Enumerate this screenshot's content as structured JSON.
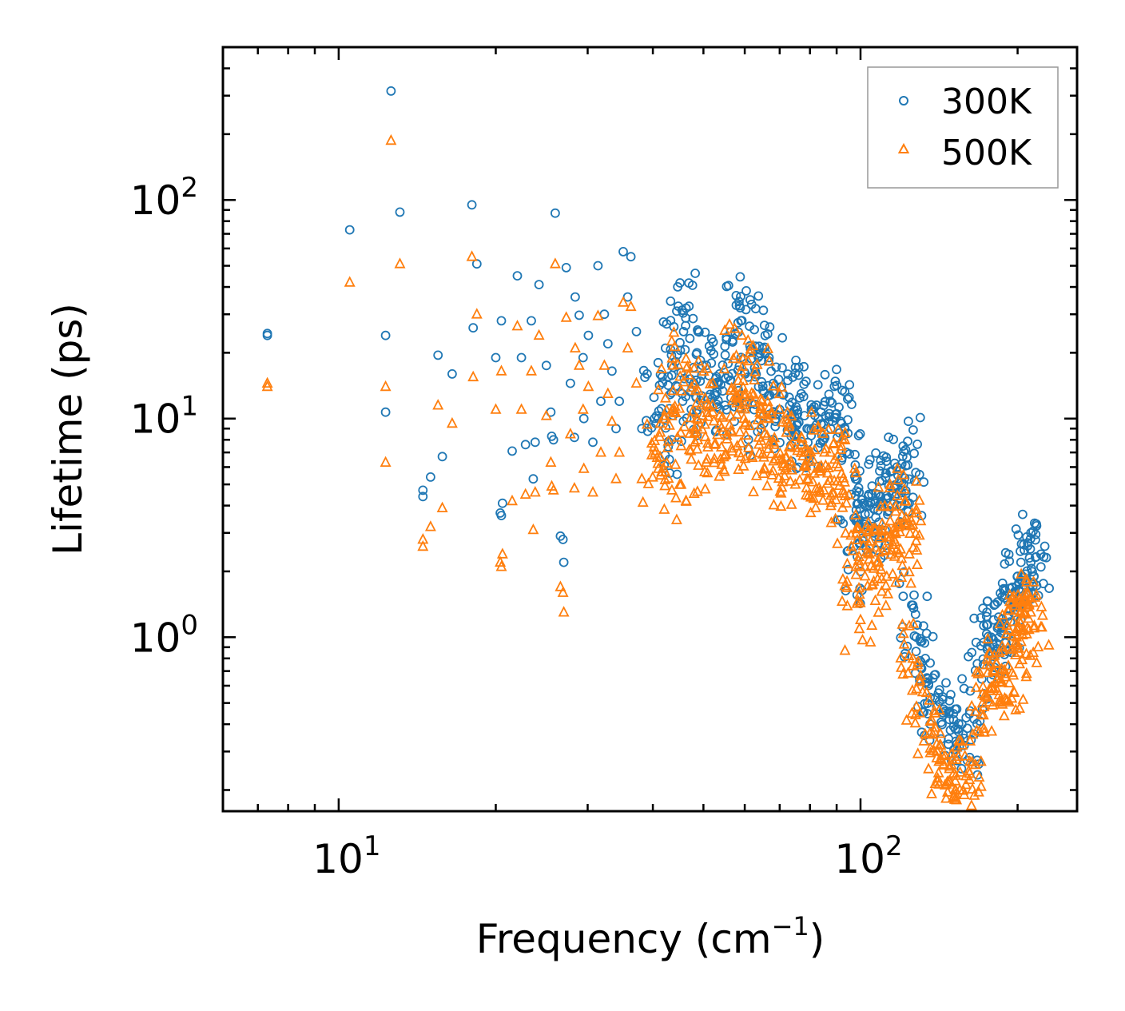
{
  "chart_data": {
    "type": "scatter",
    "title": "",
    "xlabel": "Frequency (cm",
    "xlabel_sup": "−1",
    "xlabel_end": ")",
    "ylabel": "Lifetime (ps)",
    "xscale": "log",
    "yscale": "log",
    "xlim": [
      6.0,
      260.0
    ],
    "ylim": [
      0.16,
      500.0
    ],
    "legend_position": "top-right",
    "x_ticks": [
      {
        "base": "10",
        "exp": "1",
        "value": 10
      },
      {
        "base": "10",
        "exp": "2",
        "value": 100
      }
    ],
    "y_ticks": [
      {
        "base": "10",
        "exp": "0",
        "value": 1
      },
      {
        "base": "10",
        "exp": "1",
        "value": 10
      },
      {
        "base": "10",
        "exp": "2",
        "value": 100
      }
    ],
    "series": [
      {
        "name": "300K",
        "marker": "circle",
        "color": "#1f77b4",
        "x": [
          7.3,
          7.3,
          10.5,
          12.3,
          12.3,
          12.6,
          13.1,
          14.5,
          14.5,
          15.0,
          15.5,
          15.8,
          16.5,
          18.0,
          18.1,
          18.4,
          20.0,
          20.4,
          20.5,
          20.5,
          20.6,
          21.5,
          22.0,
          22.4,
          22.8,
          23.4,
          23.6,
          23.8,
          24.2,
          25.0,
          25.5,
          25.6,
          25.8,
          26.0,
          26.6,
          26.9,
          27.0,
          27.3,
          27.8,
          28.3,
          28.4,
          28.9,
          29.4,
          29.5,
          30.1,
          30.7,
          31.4,
          31.8,
          32.3,
          32.8,
          33.4,
          34.0,
          34.5,
          35.1,
          35.8,
          36.3,
          37.2,
          38.1,
          39.0,
          40.2,
          41.0,
          42.3,
          43.5,
          44.6,
          45.8,
          46.3,
          47.4,
          48.6,
          49.8,
          51.0,
          52.5,
          53.7,
          55.0,
          56.4,
          57.8,
          59.0,
          60.1,
          61.4,
          62.6,
          63.8,
          65.2,
          66.8,
          68.3,
          70.0,
          71.5,
          73.0,
          75.0,
          77.0,
          79.0,
          81.0,
          83.0,
          85.0,
          87.5,
          90.0,
          92.0,
          94.0,
          96.0,
          98.0,
          100.0,
          102.0,
          104.0,
          106.0,
          108.0,
          110.0,
          112.0,
          114.0,
          116.0,
          118.0,
          120.0,
          122.0,
          124.0,
          126.0,
          128.0,
          130.0,
          133.0,
          136.0,
          140.0,
          144.0,
          148.0,
          152.0,
          155.0,
          158.0,
          162.0,
          172.0,
          175.0,
          178.0,
          180.0,
          183.0,
          186.0,
          189.0,
          192.0,
          195.0,
          198.0,
          200.0,
          203.0,
          206.0,
          209.0,
          212.0,
          215.0
        ],
        "y": [
          24.5,
          24.0,
          73.0,
          10.7,
          24.0,
          315.0,
          88.0,
          4.7,
          4.4,
          5.4,
          19.5,
          6.7,
          16.0,
          95.0,
          26.0,
          51.0,
          19.0,
          3.7,
          3.6,
          28.0,
          4.1,
          7.1,
          45.0,
          19.0,
          7.6,
          28.0,
          5.3,
          7.8,
          41.0,
          17.5,
          10.7,
          8.3,
          8.0,
          87.0,
          2.9,
          2.8,
          2.2,
          49.0,
          14.5,
          8.2,
          36.0,
          29.7,
          19.0,
          10.0,
          24.0,
          7.8,
          50.0,
          12.0,
          30.0,
          22.0,
          16.5,
          9.0,
          12.0,
          58.0,
          36.0,
          55.0,
          25.0,
          9.0,
          16.0,
          12.5,
          10.0,
          21.0,
          8.0,
          14.0,
          25.0,
          32.0,
          11.0,
          20.0,
          17.5,
          12.5,
          13.0,
          16.0,
          11.5,
          15.0,
          33.0,
          28.0,
          16.0,
          21.5,
          25.5,
          14.0,
          9.5,
          19.0,
          13.0,
          11.0,
          10.5,
          12.5,
          8.5,
          13.0,
          9.0,
          11.0,
          10.0,
          8.0,
          12.0,
          10.5,
          9.5,
          7.0,
          4.5,
          3.5,
          2.0,
          3.2,
          4.0,
          3.0,
          3.8,
          5.2,
          4.3,
          5.7,
          4.8,
          5.5,
          6.2,
          7.2,
          4.1,
          1.4,
          1.0,
          0.78,
          0.62,
          0.53,
          0.48,
          0.44,
          0.42,
          0.38,
          0.34,
          0.32,
          0.46,
          0.75,
          0.9,
          1.0,
          1.2,
          1.1,
          1.05,
          1.15,
          1.25,
          1.5,
          1.6,
          1.9,
          2.2,
          2.5,
          2.7,
          2.2,
          1.9
        ]
      },
      {
        "name": "500K",
        "marker": "triangle",
        "color": "#ff7f0e",
        "x": [
          7.3,
          7.3,
          10.5,
          12.3,
          12.3,
          12.6,
          13.1,
          14.5,
          14.5,
          15.0,
          15.5,
          15.8,
          16.5,
          18.0,
          18.1,
          18.4,
          20.0,
          20.4,
          20.5,
          20.5,
          20.6,
          21.5,
          22.0,
          22.4,
          22.8,
          23.4,
          23.6,
          23.8,
          24.2,
          25.0,
          25.5,
          25.6,
          25.8,
          26.0,
          26.6,
          26.9,
          27.0,
          27.3,
          27.8,
          28.3,
          28.4,
          28.9,
          29.4,
          29.5,
          30.1,
          30.7,
          31.4,
          31.8,
          32.3,
          32.8,
          33.4,
          34.0,
          34.5,
          35.1,
          35.8,
          36.3,
          37.2,
          38.1,
          39.0,
          40.2,
          41.0,
          42.3,
          43.5,
          44.6,
          45.8,
          46.3,
          47.4,
          48.6,
          49.8,
          51.0,
          52.5,
          53.7,
          55.0,
          56.4,
          57.8,
          59.0,
          60.1,
          61.4,
          62.6,
          63.8,
          65.2,
          66.8,
          68.3,
          70.0,
          71.5,
          73.0,
          75.0,
          77.0,
          79.0,
          81.0,
          83.0,
          85.0,
          87.5,
          90.0,
          92.0,
          94.0,
          96.0,
          98.0,
          100.0,
          102.0,
          104.0,
          106.0,
          108.0,
          110.0,
          112.0,
          114.0,
          116.0,
          118.0,
          120.0,
          122.0,
          124.0,
          126.0,
          128.0,
          130.0,
          133.0,
          136.0,
          140.0,
          144.0,
          148.0,
          152.0,
          155.0,
          158.0,
          162.0,
          172.0,
          175.0,
          178.0,
          180.0,
          183.0,
          186.0,
          189.0,
          192.0,
          195.0,
          198.0,
          200.0,
          203.0,
          206.0,
          209.0,
          212.0,
          215.0
        ],
        "y": [
          14.5,
          14.0,
          42.0,
          6.3,
          14.0,
          187.0,
          51.0,
          2.8,
          2.6,
          3.2,
          11.5,
          3.9,
          9.5,
          55.0,
          15.5,
          30.0,
          11.0,
          2.2,
          2.1,
          16.5,
          2.4,
          4.2,
          26.5,
          11.0,
          4.5,
          16.5,
          3.1,
          4.6,
          24.0,
          10.3,
          6.3,
          4.9,
          4.7,
          51.0,
          1.7,
          1.6,
          1.3,
          29.0,
          8.5,
          4.8,
          21.0,
          17.5,
          11.0,
          5.9,
          14.0,
          4.6,
          29.5,
          7.0,
          17.5,
          13.0,
          9.7,
          5.3,
          7.0,
          34.0,
          21.0,
          32.5,
          14.5,
          5.3,
          9.4,
          7.4,
          5.9,
          12.4,
          4.7,
          8.2,
          14.7,
          18.8,
          6.5,
          11.8,
          10.3,
          7.4,
          7.6,
          9.4,
          6.8,
          8.8,
          19.4,
          16.5,
          9.4,
          12.6,
          15.0,
          8.2,
          5.6,
          11.2,
          7.6,
          6.5,
          6.2,
          7.4,
          5.0,
          7.6,
          5.3,
          6.5,
          5.9,
          4.7,
          7.0,
          6.2,
          5.6,
          4.1,
          2.6,
          2.1,
          1.2,
          1.9,
          2.4,
          1.8,
          2.2,
          3.1,
          2.5,
          3.4,
          2.8,
          3.2,
          3.6,
          4.2,
          2.4,
          0.8,
          0.58,
          0.45,
          0.36,
          0.31,
          0.28,
          0.26,
          0.25,
          0.22,
          0.2,
          0.19,
          0.27,
          0.44,
          0.53,
          0.59,
          0.7,
          0.65,
          0.62,
          0.68,
          0.74,
          0.88,
          0.94,
          1.1,
          1.3,
          1.45,
          1.6,
          1.3,
          1.1
        ]
      }
    ]
  }
}
